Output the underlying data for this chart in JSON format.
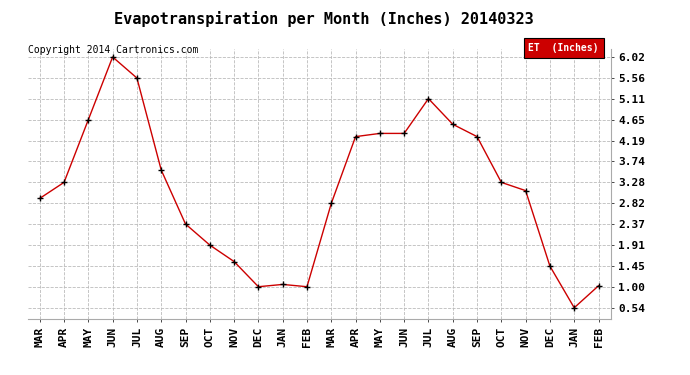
{
  "title": "Evapotranspiration per Month (Inches) 20140323",
  "copyright": "Copyright 2014 Cartronics.com",
  "legend_label": "ET  (Inches)",
  "legend_bg": "#cc0000",
  "legend_text_color": "#ffffff",
  "x_labels": [
    "MAR",
    "APR",
    "MAY",
    "JUN",
    "JUL",
    "AUG",
    "SEP",
    "OCT",
    "NOV",
    "DEC",
    "JAN",
    "FEB",
    "MAR",
    "APR",
    "MAY",
    "JUN",
    "JUL",
    "AUG",
    "SEP",
    "OCT",
    "NOV",
    "DEC",
    "JAN",
    "FEB"
  ],
  "y_values": [
    2.93,
    3.28,
    4.65,
    6.02,
    5.56,
    3.55,
    2.37,
    1.91,
    1.55,
    1.0,
    1.05,
    1.0,
    2.82,
    4.28,
    4.35,
    4.35,
    5.11,
    4.55,
    4.28,
    3.28,
    3.1,
    1.45,
    0.54,
    1.02
  ],
  "y_ticks": [
    0.54,
    1.0,
    1.45,
    1.91,
    2.37,
    2.82,
    3.28,
    3.74,
    4.19,
    4.65,
    5.11,
    5.56,
    6.02
  ],
  "y_min": 0.3,
  "y_max": 6.2,
  "line_color": "#cc0000",
  "marker_color": "#000000",
  "grid_color": "#bbbbbb",
  "bg_color": "#ffffff",
  "title_fontsize": 11,
  "tick_fontsize": 8,
  "copyright_fontsize": 7,
  "fig_width": 6.9,
  "fig_height": 3.75
}
